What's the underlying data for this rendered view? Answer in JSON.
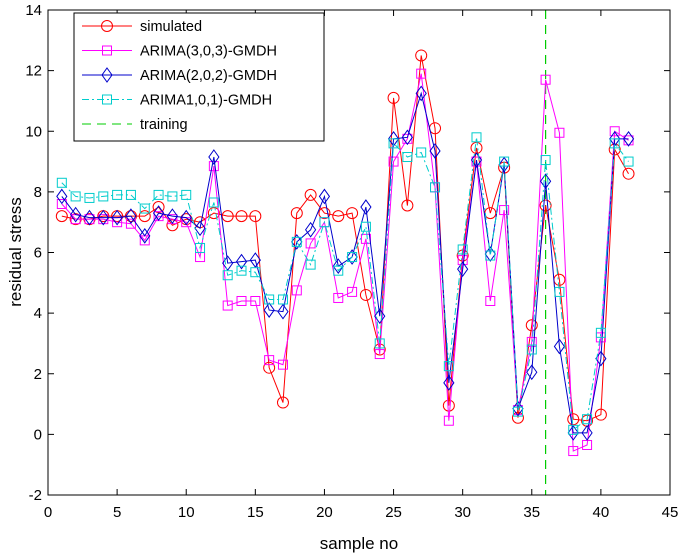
{
  "chart_data": {
    "type": "line",
    "title": "",
    "xlabel": "sample no",
    "ylabel": "residual stress",
    "xlim": [
      0,
      45
    ],
    "ylim": [
      -2,
      14
    ],
    "xticks": [
      0,
      5,
      10,
      15,
      20,
      25,
      30,
      35,
      40,
      45
    ],
    "yticks": [
      -2,
      0,
      2,
      4,
      6,
      8,
      10,
      12,
      14
    ],
    "grid": false,
    "legend_position": "top-left",
    "x": [
      1,
      2,
      3,
      4,
      5,
      6,
      7,
      8,
      9,
      10,
      11,
      12,
      13,
      14,
      15,
      16,
      17,
      18,
      19,
      20,
      21,
      22,
      23,
      24,
      25,
      26,
      27,
      28,
      29,
      30,
      31,
      32,
      33,
      34,
      35,
      36,
      37,
      38,
      39,
      40,
      41,
      42
    ],
    "series": [
      {
        "name": "simulated",
        "color": "#ff0000",
        "line": "solid",
        "marker": "circle",
        "values": [
          7.2,
          7.1,
          7.1,
          7.2,
          7.2,
          7.2,
          7.2,
          7.5,
          6.9,
          7.1,
          7.0,
          7.3,
          7.2,
          7.2,
          7.2,
          2.2,
          1.05,
          7.3,
          7.9,
          7.3,
          7.2,
          7.3,
          4.6,
          2.8,
          11.1,
          7.55,
          12.5,
          10.1,
          0.95,
          5.9,
          9.45,
          7.3,
          8.8,
          0.55,
          3.6,
          7.55,
          5.1,
          0.5,
          0.45,
          0.65,
          9.4,
          8.6
        ]
      },
      {
        "name": "ARIMA(3,0,3)-GMDH",
        "color": "#ff00ff",
        "line": "solid",
        "marker": "square",
        "values": [
          7.6,
          7.1,
          7.1,
          7.1,
          7.0,
          6.95,
          6.4,
          7.2,
          7.1,
          7.0,
          5.85,
          8.85,
          4.25,
          4.4,
          4.4,
          2.45,
          2.3,
          4.75,
          6.3,
          7.0,
          4.5,
          4.7,
          6.45,
          2.65,
          9.0,
          9.75,
          11.9,
          8.15,
          0.45,
          5.75,
          9.0,
          4.4,
          7.4,
          0.8,
          3.05,
          11.7,
          9.95,
          -0.55,
          -0.35,
          3.2,
          10.0,
          9.7
        ]
      },
      {
        "name": "ARIMA(2,0,2)-GMDH",
        "color": "#0000cc",
        "line": "solid",
        "marker": "diamond",
        "values": [
          7.85,
          7.25,
          7.15,
          7.15,
          7.15,
          7.2,
          6.55,
          7.3,
          7.2,
          7.15,
          6.8,
          9.15,
          5.65,
          5.7,
          5.75,
          4.1,
          4.05,
          6.35,
          6.75,
          7.85,
          5.55,
          5.85,
          7.5,
          3.9,
          9.75,
          9.8,
          11.25,
          9.35,
          1.7,
          5.45,
          9.05,
          5.95,
          8.9,
          0.85,
          2.05,
          8.35,
          2.9,
          0.05,
          0.05,
          2.5,
          9.75,
          9.75
        ]
      },
      {
        "name": "ARIMA1,0,1)-GMDH",
        "color": "#00cccc",
        "line": "dashdot",
        "marker": "square",
        "values": [
          8.3,
          7.85,
          7.8,
          7.85,
          7.9,
          7.9,
          7.45,
          7.9,
          7.85,
          7.9,
          6.15,
          7.65,
          5.25,
          5.4,
          5.35,
          4.45,
          4.45,
          6.35,
          5.6,
          7.0,
          5.4,
          5.85,
          6.85,
          3.0,
          9.6,
          9.15,
          9.3,
          8.15,
          2.25,
          6.1,
          9.8,
          5.9,
          9.0,
          0.75,
          2.8,
          9.05,
          4.7,
          0.15,
          0.5,
          3.35,
          9.6,
          9.0
        ]
      }
    ],
    "vertical_line": {
      "name": "training",
      "x": 36,
      "color": "#00cc00",
      "line": "dashed"
    }
  }
}
